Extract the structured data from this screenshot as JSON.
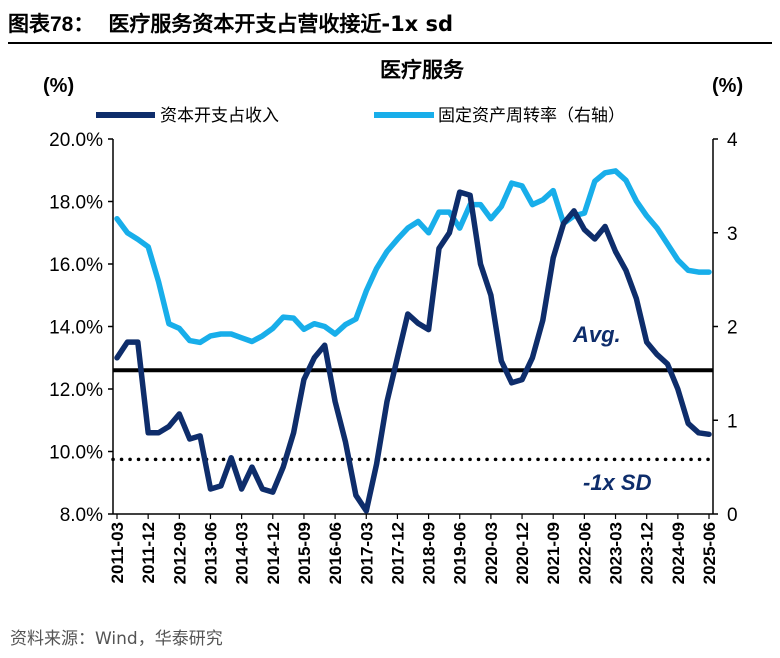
{
  "figure": {
    "label": "图表78：",
    "title": "医疗服务资本开支占营收接近-1x sd",
    "source": "资料来源：Wind，华泰研究"
  },
  "colors": {
    "capex": "#0E2D6B",
    "turnover": "#18AEEA",
    "avg": "#000000",
    "sd": "#000000",
    "annotation": "#0E2D6B"
  },
  "chart_data": {
    "type": "line",
    "title": "医疗服务",
    "left_unit": "(%)",
    "right_unit": "(%)",
    "x": [
      "2011-03",
      "2011-06",
      "2011-09",
      "2011-12",
      "2012-03",
      "2012-06",
      "2012-09",
      "2012-12",
      "2013-03",
      "2013-06",
      "2013-09",
      "2013-12",
      "2014-03",
      "2014-06",
      "2014-09",
      "2014-12",
      "2015-03",
      "2015-06",
      "2015-09",
      "2015-12",
      "2016-03",
      "2016-06",
      "2016-09",
      "2016-12",
      "2017-03",
      "2017-06",
      "2017-09",
      "2017-12",
      "2018-03",
      "2018-06",
      "2018-09",
      "2018-12",
      "2019-03",
      "2019-06",
      "2019-09",
      "2019-12",
      "2020-03",
      "2020-06",
      "2020-09",
      "2020-12",
      "2021-03",
      "2021-06",
      "2021-09",
      "2021-12",
      "2022-03",
      "2022-06",
      "2022-09",
      "2022-12",
      "2023-03",
      "2023-06",
      "2023-09",
      "2023-12",
      "2024-03",
      "2024-06",
      "2024-09",
      "2024-12",
      "2025-03",
      "2025-06"
    ],
    "x_tick_labels": [
      "2011-03",
      "2011-12",
      "2012-09",
      "2013-06",
      "2014-03",
      "2014-12",
      "2015-09",
      "2016-06",
      "2017-03",
      "2017-12",
      "2018-09",
      "2019-06",
      "2020-03",
      "2020-12",
      "2021-09",
      "2022-06",
      "2023-03",
      "2023-12",
      "2024-09",
      "2025-06"
    ],
    "left_axis": {
      "min": 8,
      "max": 20,
      "ticks": [
        "8.0%",
        "10.0%",
        "12.0%",
        "14.0%",
        "16.0%",
        "18.0%",
        "20.0%"
      ]
    },
    "right_axis": {
      "min": 0,
      "max": 4,
      "ticks": [
        "0",
        "1",
        "2",
        "3",
        "4"
      ]
    },
    "series": [
      {
        "name": "资本开支占收入",
        "axis": "left",
        "values": [
          13.0,
          13.5,
          13.5,
          10.6,
          10.6,
          10.8,
          11.2,
          10.4,
          10.5,
          8.8,
          8.9,
          9.8,
          8.8,
          9.5,
          8.8,
          8.7,
          9.5,
          10.6,
          12.3,
          13.0,
          13.4,
          11.6,
          10.3,
          8.6,
          8.1,
          9.6,
          11.6,
          13.0,
          14.4,
          14.1,
          13.9,
          16.5,
          17.0,
          18.3,
          18.2,
          16.0,
          15.0,
          12.9,
          12.2,
          12.3,
          13.0,
          14.2,
          16.2,
          17.3,
          17.7,
          17.1,
          16.8,
          17.2,
          16.4,
          15.8,
          14.9,
          13.5,
          13.1,
          12.8,
          12.0,
          10.9,
          10.6,
          10.55
        ]
      },
      {
        "name": "固定资产周转率（右轴）",
        "axis": "right",
        "values": [
          3.15,
          3.0,
          2.93,
          2.85,
          2.48,
          2.03,
          1.98,
          1.85,
          1.83,
          1.9,
          1.92,
          1.92,
          1.88,
          1.84,
          1.9,
          1.98,
          2.1,
          2.09,
          1.97,
          2.03,
          2.0,
          1.92,
          2.02,
          2.08,
          2.38,
          2.62,
          2.8,
          2.93,
          3.05,
          3.12,
          3.0,
          3.22,
          3.22,
          3.05,
          3.3,
          3.3,
          3.15,
          3.28,
          3.53,
          3.5,
          3.3,
          3.35,
          3.45,
          3.1,
          3.18,
          3.21,
          3.55,
          3.64,
          3.66,
          3.56,
          3.34,
          3.18,
          3.05,
          2.88,
          2.71,
          2.6,
          2.58,
          2.58
        ]
      }
    ],
    "reference_lines": [
      {
        "name": "Avg.",
        "axis": "left",
        "value": 12.6,
        "style": "solid"
      },
      {
        "name": "-1x SD",
        "axis": "left",
        "value": 9.75,
        "style": "dotted"
      }
    ],
    "annotations": {
      "avg_label": "Avg.",
      "sd_label": "-1x SD"
    },
    "legend": [
      "资本开支占收入",
      "固定资产周转率（右轴）"
    ],
    "legend_position": "top",
    "grid": false
  }
}
